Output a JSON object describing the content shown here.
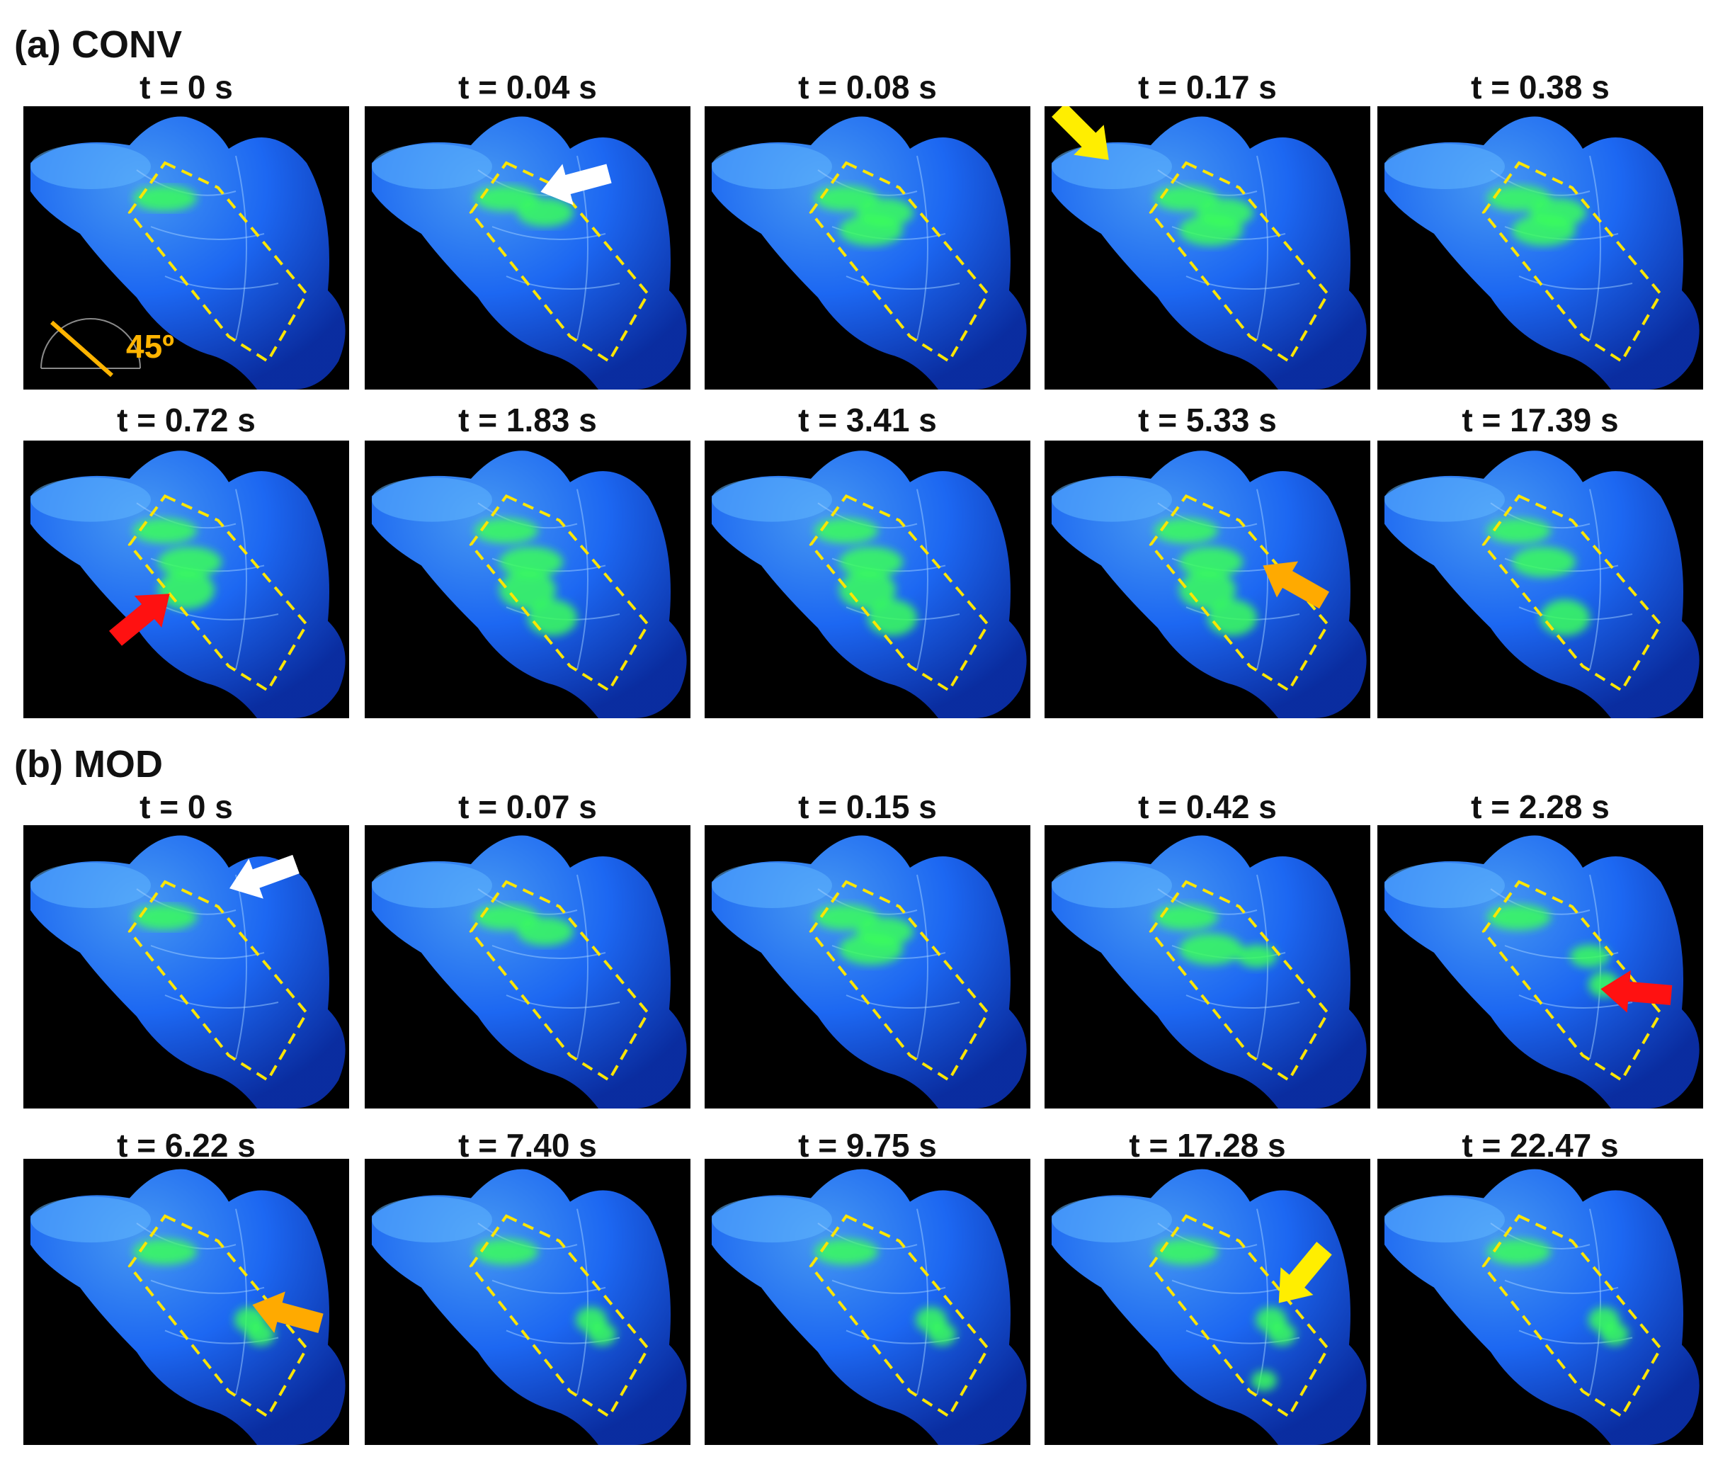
{
  "sections": [
    {
      "label": "(a) CONV",
      "frames": [
        {
          "time": "t = 0 s",
          "protractor": "45º"
        },
        {
          "time": "t = 0.04 s",
          "arrow": "white"
        },
        {
          "time": "t = 0.08 s"
        },
        {
          "time": "t = 0.17 s",
          "arrow": "yellow"
        },
        {
          "time": "t = 0.38 s"
        },
        {
          "time": "t = 0.72 s",
          "arrow": "red"
        },
        {
          "time": "t = 1.83 s"
        },
        {
          "time": "t = 3.41 s"
        },
        {
          "time": "t = 5.33 s",
          "arrow": "orange"
        },
        {
          "time": "t = 17.39 s"
        }
      ]
    },
    {
      "label": "(b) MOD",
      "frames": [
        {
          "time": "t = 0 s",
          "arrow": "white"
        },
        {
          "time": "t = 0.07 s"
        },
        {
          "time": "t = 0.15 s"
        },
        {
          "time": "t = 0.42 s"
        },
        {
          "time": "t = 2.28 s",
          "arrow": "red"
        },
        {
          "time": "t = 6.22 s",
          "arrow": "orange"
        },
        {
          "time": "t = 7.40 s"
        },
        {
          "time": "t = 9.75 s"
        },
        {
          "time": "t = 17.28 s",
          "arrow": "yellow"
        },
        {
          "time": "t = 22.47 s"
        }
      ]
    }
  ],
  "colors": {
    "background": "#000000",
    "model_blue": "#1e6dff",
    "fluorescence_green": "#39ff5a",
    "dashed_box": "#ffe600",
    "arrow_white": "#ffffff",
    "arrow_yellow": "#ffee00",
    "arrow_red": "#ff1111",
    "arrow_orange": "#ffaa00"
  }
}
